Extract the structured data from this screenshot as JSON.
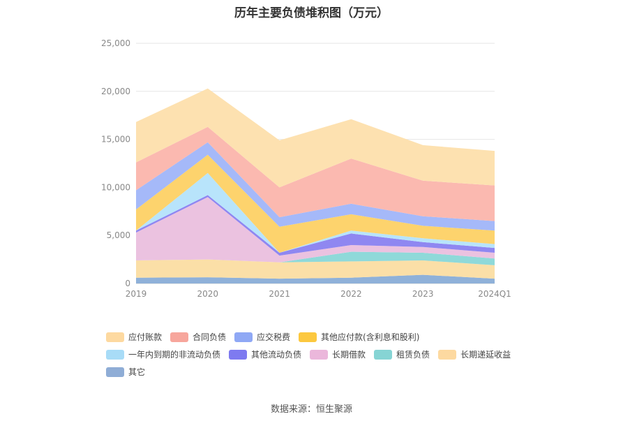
{
  "title": "历年主要负债堆积图（万元）",
  "source": "数据来源：恒生聚源",
  "chart_data": {
    "type": "area",
    "stacked": true,
    "title": "历年主要负债堆积图（万元）",
    "categories": [
      "2019",
      "2020",
      "2021",
      "2022",
      "2023",
      "2024Q1"
    ],
    "ylim": [
      0,
      25000
    ],
    "yticks": [
      "0",
      "5,000",
      "10,000",
      "15,000",
      "20,000",
      "25,000"
    ],
    "grid": true,
    "legend_position": "bottom",
    "series": [
      {
        "name": "其它",
        "color": "#8fb1d9",
        "values": [
          600,
          650,
          500,
          600,
          900,
          500
        ]
      },
      {
        "name": "长期递延收益",
        "color": "#fbdfa7",
        "values": [
          1800,
          1850,
          1700,
          1700,
          1500,
          1400
        ]
      },
      {
        "name": "租赁负债",
        "color": "#8fd9d9",
        "values": [
          0,
          0,
          0,
          1000,
          800,
          700
        ]
      },
      {
        "name": "长期借款",
        "color": "#ebc2e0",
        "values": [
          2900,
          6500,
          700,
          700,
          600,
          600
        ]
      },
      {
        "name": "其他流动负债",
        "color": "#8f87f1",
        "values": [
          200,
          200,
          300,
          1200,
          500,
          500
        ]
      },
      {
        "name": "一年内到期的非流动负债",
        "color": "#b8e4fb",
        "values": [
          0,
          2300,
          0,
          300,
          400,
          400
        ]
      },
      {
        "name": "其他应付款(含利息和股利)",
        "color": "#fdd36d",
        "values": [
          2200,
          1900,
          2700,
          1700,
          1300,
          1400
        ]
      },
      {
        "name": "应交税费",
        "color": "#a5b9f9",
        "values": [
          2000,
          1300,
          1000,
          1100,
          1000,
          1000
        ]
      },
      {
        "name": "合同负债",
        "color": "#fbb9b0",
        "values": [
          2900,
          1600,
          3100,
          4700,
          3700,
          3700
        ]
      },
      {
        "name": "应付账款",
        "color": "#fde1b0",
        "values": [
          4200,
          4000,
          4900,
          4100,
          3700,
          3600
        ]
      }
    ],
    "legend_order": [
      "应付账款",
      "合同负债",
      "应交税费",
      "其他应付款(含利息和股利)",
      "一年内到期的非流动负债",
      "其他流动负债",
      "长期借款",
      "租赁负债",
      "长期递延收益",
      "其它"
    ],
    "legend_colors": [
      "#fdd9a0",
      "#f7a69c",
      "#8fa8f5",
      "#fcc83f",
      "#a8dcf7",
      "#7e7af0",
      "#ebb7db",
      "#86d4d4",
      "#fdd9a0",
      "#8fadd6"
    ]
  }
}
